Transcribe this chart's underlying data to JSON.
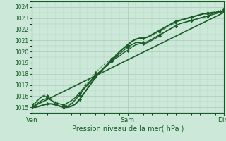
{
  "background_color": "#cce8d8",
  "grid_color": "#aaccb8",
  "line_color": "#1a5c28",
  "marker_color": "#1a5c28",
  "xlabel": "Pression niveau de la mer( hPa )",
  "ylim": [
    1014.5,
    1024.5
  ],
  "yticks": [
    1015,
    1016,
    1017,
    1018,
    1019,
    1020,
    1021,
    1022,
    1023,
    1024
  ],
  "xtick_labels": [
    "Ven",
    "Sam",
    "Dim"
  ],
  "xtick_positions": [
    0,
    48,
    96
  ],
  "lines": [
    {
      "x": [
        0,
        2,
        4,
        6,
        8,
        10,
        12,
        14,
        16,
        18,
        20,
        22,
        24,
        26,
        28,
        30,
        32,
        34,
        36,
        38,
        40,
        42,
        44,
        46,
        48,
        50,
        52,
        54,
        56,
        58,
        60,
        62,
        64,
        66,
        68,
        70,
        72,
        74,
        76,
        78,
        80,
        82,
        84,
        86,
        88,
        90,
        92,
        94,
        96
      ],
      "y": [
        1015.0,
        1015.2,
        1015.5,
        1015.7,
        1015.8,
        1015.6,
        1015.4,
        1015.3,
        1015.2,
        1015.4,
        1015.6,
        1015.9,
        1016.3,
        1016.7,
        1017.1,
        1017.5,
        1017.9,
        1018.2,
        1018.5,
        1018.8,
        1019.1,
        1019.4,
        1019.6,
        1019.9,
        1020.1,
        1020.4,
        1020.6,
        1020.7,
        1020.8,
        1020.9,
        1021.1,
        1021.3,
        1021.5,
        1021.7,
        1021.9,
        1022.1,
        1022.3,
        1022.5,
        1022.6,
        1022.7,
        1022.8,
        1022.9,
        1023.0,
        1023.1,
        1023.2,
        1023.3,
        1023.4,
        1023.5,
        1023.6
      ],
      "style": "-",
      "marker": "D",
      "markersize": 2.0,
      "markevery": 4,
      "linewidth": 1.0
    },
    {
      "x": [
        0,
        2,
        4,
        6,
        8,
        10,
        12,
        14,
        16,
        18,
        20,
        22,
        24,
        26,
        28,
        30,
        32,
        34,
        36,
        38,
        40,
        42,
        44,
        46,
        48,
        50,
        52,
        54,
        56,
        58,
        60,
        62,
        64,
        66,
        68,
        70,
        72,
        74,
        76,
        78,
        80,
        82,
        84,
        86,
        88,
        90,
        92,
        94,
        96
      ],
      "y": [
        1015.1,
        1015.4,
        1015.8,
        1016.0,
        1015.9,
        1015.6,
        1015.3,
        1015.1,
        1015.0,
        1015.1,
        1015.3,
        1015.7,
        1016.1,
        1016.6,
        1017.0,
        1017.4,
        1017.8,
        1018.1,
        1018.5,
        1018.8,
        1019.2,
        1019.5,
        1019.8,
        1020.1,
        1020.4,
        1020.6,
        1020.8,
        1020.8,
        1020.7,
        1020.8,
        1021.0,
        1021.2,
        1021.4,
        1021.7,
        1021.9,
        1022.1,
        1022.3,
        1022.5,
        1022.6,
        1022.7,
        1022.8,
        1022.9,
        1023.0,
        1023.1,
        1023.2,
        1023.4,
        1023.5,
        1023.6,
        1023.7
      ],
      "style": "-",
      "marker": "D",
      "markersize": 2.0,
      "markevery": 4,
      "linewidth": 1.0
    },
    {
      "x": [
        0,
        2,
        4,
        6,
        8,
        10,
        12,
        14,
        16,
        18,
        20,
        22,
        24,
        26,
        28,
        30,
        32,
        34,
        36,
        38,
        40,
        42,
        44,
        46,
        48,
        50,
        52,
        54,
        56,
        58,
        60,
        62,
        64,
        66,
        68,
        70,
        72,
        74,
        76,
        78,
        80,
        82,
        84,
        86,
        88,
        90,
        92,
        94,
        96
      ],
      "y": [
        1015.0,
        1015.0,
        1015.1,
        1015.2,
        1015.3,
        1015.3,
        1015.2,
        1015.1,
        1015.0,
        1015.0,
        1015.1,
        1015.3,
        1015.7,
        1016.2,
        1016.7,
        1017.2,
        1017.7,
        1018.1,
        1018.5,
        1018.9,
        1019.3,
        1019.6,
        1020.0,
        1020.3,
        1020.6,
        1020.9,
        1021.1,
        1021.2,
        1021.2,
        1021.3,
        1021.5,
        1021.7,
        1021.9,
        1022.1,
        1022.3,
        1022.5,
        1022.7,
        1022.8,
        1022.9,
        1023.0,
        1023.1,
        1023.2,
        1023.3,
        1023.4,
        1023.4,
        1023.5,
        1023.5,
        1023.6,
        1023.6
      ],
      "style": "-",
      "marker": "D",
      "markersize": 2.0,
      "markevery": 4,
      "linewidth": 1.5
    },
    {
      "x": [
        0,
        96
      ],
      "y": [
        1015.0,
        1023.5
      ],
      "style": "-",
      "marker": "None",
      "markersize": 0,
      "markevery": 1,
      "linewidth": 1.2
    },
    {
      "x": [
        0,
        2,
        4,
        6,
        8,
        10,
        12,
        14,
        16,
        18,
        20,
        22,
        24,
        26,
        28,
        30,
        32,
        34,
        36,
        38,
        40,
        42,
        44,
        46,
        48,
        50,
        52,
        54,
        56,
        58,
        60,
        62,
        64,
        66,
        68,
        70,
        72,
        74,
        76,
        78,
        80,
        82,
        84,
        86,
        88,
        90,
        92,
        94,
        96
      ],
      "y": [
        1015.2,
        1015.5,
        1015.8,
        1016.1,
        1016.0,
        1015.8,
        1015.5,
        1015.3,
        1015.1,
        1015.2,
        1015.4,
        1015.8,
        1016.3,
        1016.8,
        1017.3,
        1017.7,
        1018.1,
        1018.5,
        1018.8,
        1019.1,
        1019.4,
        1019.7,
        1020.0,
        1020.3,
        1020.6,
        1020.9,
        1021.1,
        1021.2,
        1021.2,
        1021.3,
        1021.4,
        1021.6,
        1021.8,
        1022.0,
        1022.2,
        1022.4,
        1022.6,
        1022.8,
        1022.9,
        1023.0,
        1023.1,
        1023.2,
        1023.3,
        1023.4,
        1023.5,
        1023.5,
        1023.6,
        1023.7,
        1023.8
      ],
      "style": ":",
      "marker": "D",
      "markersize": 2.0,
      "markevery": 4,
      "linewidth": 0.8
    }
  ]
}
